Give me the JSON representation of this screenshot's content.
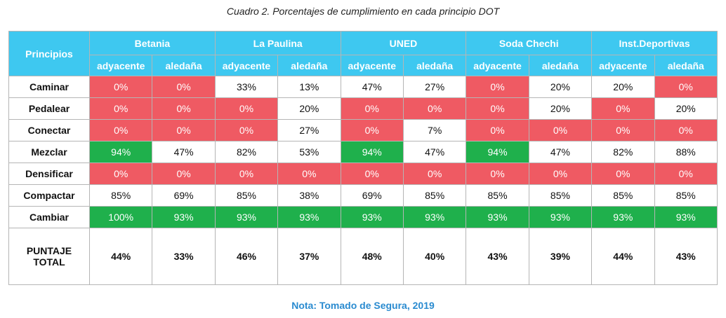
{
  "caption": "Cuadro 2. Porcentajes de cumplimiento en cada principio DOT",
  "header": {
    "principles_label": "Principios",
    "groups": [
      "Betania",
      "La Paulina",
      "UNED",
      "Soda Chechi",
      "Inst.Deportivas"
    ],
    "sub": [
      "adyacente",
      "aledaña"
    ]
  },
  "rows": [
    {
      "label": "Caminar",
      "values": [
        "0%",
        "0%",
        "33%",
        "13%",
        "47%",
        "27%",
        "0%",
        "20%",
        "20%",
        "0%"
      ],
      "colors": [
        "#ef5a63",
        "#ef5a63",
        "#ffffff",
        "#ffffff",
        "#ffffff",
        "#ffffff",
        "#ef5a63",
        "#ffffff",
        "#ffffff",
        "#ef5a63"
      ]
    },
    {
      "label": "Pedalear",
      "values": [
        "0%",
        "0%",
        "0%",
        "20%",
        "0%",
        "0%",
        "0%",
        "20%",
        "0%",
        "20%"
      ],
      "colors": [
        "#ef5a63",
        "#ef5a63",
        "#ef5a63",
        "#ffffff",
        "#ef5a63",
        "#ef5a63",
        "#ef5a63",
        "#ffffff",
        "#ef5a63",
        "#ffffff"
      ]
    },
    {
      "label": "Conectar",
      "values": [
        "0%",
        "0%",
        "0%",
        "27%",
        "0%",
        "7%",
        "0%",
        "0%",
        "0%",
        "0%"
      ],
      "colors": [
        "#ef5a63",
        "#ef5a63",
        "#ef5a63",
        "#ffffff",
        "#ef5a63",
        "#ffffff",
        "#ef5a63",
        "#ef5a63",
        "#ef5a63",
        "#ef5a63"
      ]
    },
    {
      "label": "Mezclar",
      "values": [
        "94%",
        "47%",
        "82%",
        "53%",
        "94%",
        "47%",
        "94%",
        "47%",
        "82%",
        "88%"
      ],
      "colors": [
        "#1fb04c",
        "#ffffff",
        "#ffffff",
        "#ffffff",
        "#1fb04c",
        "#ffffff",
        "#1fb04c",
        "#ffffff",
        "#ffffff",
        "#ffffff"
      ]
    },
    {
      "label": "Densificar",
      "values": [
        "0%",
        "0%",
        "0%",
        "0%",
        "0%",
        "0%",
        "0%",
        "0%",
        "0%",
        "0%"
      ],
      "colors": [
        "#ef5a63",
        "#ef5a63",
        "#ef5a63",
        "#ef5a63",
        "#ef5a63",
        "#ef5a63",
        "#ef5a63",
        "#ef5a63",
        "#ef5a63",
        "#ef5a63"
      ]
    },
    {
      "label": "Compactar",
      "values": [
        "85%",
        "69%",
        "85%",
        "38%",
        "69%",
        "85%",
        "85%",
        "85%",
        "85%",
        "85%"
      ],
      "colors": [
        "#ffffff",
        "#ffffff",
        "#ffffff",
        "#ffffff",
        "#ffffff",
        "#ffffff",
        "#ffffff",
        "#ffffff",
        "#ffffff",
        "#ffffff"
      ]
    },
    {
      "label": "Cambiar",
      "values": [
        "100%",
        "93%",
        "93%",
        "93%",
        "93%",
        "93%",
        "93%",
        "93%",
        "93%",
        "93%"
      ],
      "colors": [
        "#1fb04c",
        "#1fb04c",
        "#1fb04c",
        "#1fb04c",
        "#1fb04c",
        "#1fb04c",
        "#1fb04c",
        "#1fb04c",
        "#1fb04c",
        "#1fb04c"
      ]
    }
  ],
  "total": {
    "label_line1": "PUNTAJE",
    "label_line2": "TOTAL",
    "values": [
      "44%",
      "33%",
      "46%",
      "37%",
      "48%",
      "40%",
      "43%",
      "39%",
      "44%",
      "43%"
    ]
  },
  "note": "Nota: Tomado de Segura, 2019"
}
